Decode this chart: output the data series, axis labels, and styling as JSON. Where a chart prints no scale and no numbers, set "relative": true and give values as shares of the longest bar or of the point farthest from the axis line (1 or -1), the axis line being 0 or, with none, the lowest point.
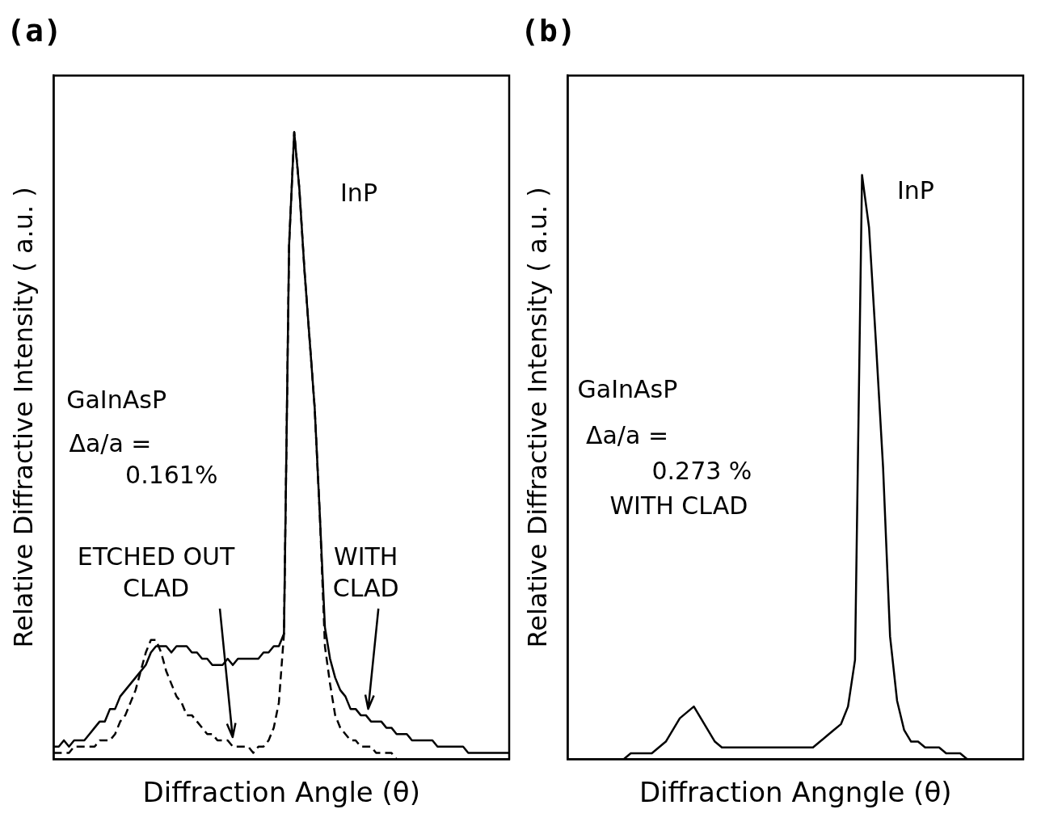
{
  "chart_data": [
    {
      "type": "line",
      "title": "(a)",
      "xlabel": "Diffraction Angle (θ)",
      "ylabel": "Relative Diffractive Intensity ( a.u. )",
      "relative": true,
      "grid": false,
      "legend": false,
      "marker": "none",
      "categories": [
        null,
        null,
        null,
        null,
        null,
        null,
        null,
        null,
        null,
        null,
        null,
        null,
        null,
        null,
        null,
        null,
        null,
        null,
        null,
        null,
        null,
        null,
        null,
        null,
        null,
        null,
        null,
        null,
        null,
        null,
        null,
        null,
        null,
        null,
        null,
        null,
        null,
        null,
        null,
        null,
        null,
        null,
        null,
        null,
        null,
        null,
        null,
        null,
        null,
        null,
        null,
        null,
        null,
        null,
        null,
        null,
        null,
        null,
        null,
        null,
        null,
        null,
        null,
        null,
        null,
        null,
        null,
        null,
        null,
        null,
        null,
        null,
        null,
        null,
        null,
        null,
        null,
        null,
        null,
        null,
        null,
        null,
        null,
        null,
        null,
        null,
        null,
        null,
        null,
        null
      ],
      "series": [
        {
          "color": "#000000",
          "line_style": "solid",
          "values": [
            0.02,
            0.02,
            0.03,
            0.02,
            0.03,
            0.03,
            0.03,
            0.04,
            0.05,
            0.06,
            0.06,
            0.08,
            0.08,
            0.1,
            0.11,
            0.12,
            0.13,
            0.14,
            0.15,
            0.17,
            0.18,
            0.18,
            0.18,
            0.17,
            0.18,
            0.18,
            0.18,
            0.17,
            0.17,
            0.16,
            0.16,
            0.15,
            0.15,
            0.15,
            0.16,
            0.15,
            0.16,
            0.16,
            0.16,
            0.16,
            0.16,
            0.17,
            0.17,
            0.18,
            0.18,
            0.2,
            0.82,
            1,
            0.91,
            0.78,
            0.67,
            0.56,
            0.39,
            0.21,
            0.16,
            0.13,
            0.11,
            0.1,
            0.08,
            0.08,
            0.07,
            0.07,
            0.06,
            0.06,
            0.06,
            0.05,
            0.05,
            0.04,
            0.04,
            0.04,
            0.03,
            0.03,
            0.03,
            0.03,
            0.03,
            0.02,
            0.02,
            0.02,
            0.02,
            0.02,
            0.02,
            0.01,
            0.01,
            0.01,
            0.01,
            0.01,
            0.01,
            0.01,
            0.01,
            0.01
          ]
        },
        {
          "color": "#000000",
          "line_style": "dashed",
          "values": [
            0.01,
            0.01,
            0.01,
            0.01,
            0.02,
            0.02,
            0.02,
            0.02,
            0.02,
            0.03,
            0.03,
            0.03,
            0.04,
            0.06,
            0.07,
            0.09,
            0.11,
            0.14,
            0.17,
            0.19,
            0.19,
            0.17,
            0.14,
            0.12,
            0.1,
            0.09,
            0.07,
            0.07,
            0.06,
            0.05,
            0.04,
            0.04,
            0.03,
            0.03,
            0.03,
            0.02,
            0.02,
            0.02,
            0.02,
            0.01,
            0.02,
            0.02,
            0.03,
            0.05,
            0.09,
            0.2,
            0.82,
            1,
            0.91,
            0.78,
            0.67,
            0.56,
            0.39,
            0.18,
            0.12,
            0.07,
            0.05,
            0.04,
            0.03,
            0.03,
            0.02,
            0.02,
            0.02,
            0.01,
            0.01,
            0.01,
            0.01,
            0.0,
            null,
            null,
            null,
            null,
            null,
            null,
            null,
            null,
            null,
            null,
            null,
            null,
            null,
            null,
            null,
            null,
            null,
            null,
            null,
            null,
            null,
            null
          ]
        }
      ],
      "annotations": [
        "InP",
        "GaInAsP",
        "Δa/a =",
        "0.161%",
        "ETCHED OUT",
        "CLAD",
        "WITH",
        "CLAD"
      ]
    },
    {
      "type": "line",
      "title": "(b)",
      "xlabel": "Diffraction Angngle (θ)",
      "ylabel": "Relative Diffractive Intensity ( a.u. )",
      "relative": true,
      "grid": false,
      "legend": false,
      "marker": "none",
      "categories": [
        null,
        null,
        null,
        null,
        null,
        null,
        null,
        null,
        null,
        null,
        null,
        null,
        null,
        null,
        null,
        null,
        null,
        null,
        null,
        null,
        null,
        null,
        null,
        null,
        null,
        null,
        null,
        null,
        null,
        null,
        null,
        null,
        null,
        null,
        null,
        null,
        null,
        null,
        null,
        null,
        null,
        null,
        null,
        null,
        null,
        null,
        null,
        null,
        null,
        null,
        null,
        null,
        null,
        null,
        null,
        null,
        null,
        null,
        null,
        null,
        null,
        null,
        null,
        null,
        null,
        null
      ],
      "series": [
        {
          "color": "#000000",
          "line_style": "solid",
          "values": [
            null,
            null,
            null,
            null,
            null,
            null,
            null,
            0.0,
            0.0,
            0.01,
            0.01,
            0.01,
            0.01,
            0.02,
            0.03,
            0.05,
            0.07,
            0.08,
            0.09,
            0.07,
            0.05,
            0.03,
            0.02,
            0.02,
            0.02,
            0.02,
            0.02,
            0.02,
            0.02,
            0.02,
            0.02,
            0.02,
            0.02,
            0.02,
            0.02,
            0.02,
            0.03,
            0.04,
            0.05,
            0.06,
            0.09,
            0.17,
            1,
            0.91,
            0.71,
            0.5,
            0.21,
            0.1,
            0.05,
            0.03,
            0.03,
            0.02,
            0.02,
            0.02,
            0.01,
            0.01,
            0.01,
            0.0,
            null,
            null,
            null,
            null,
            null,
            null,
            null,
            null
          ]
        }
      ],
      "annotations": [
        "InP",
        "GaInAsP",
        "Δa/a =",
        "0.273 %",
        "WITH CLAD"
      ]
    }
  ]
}
